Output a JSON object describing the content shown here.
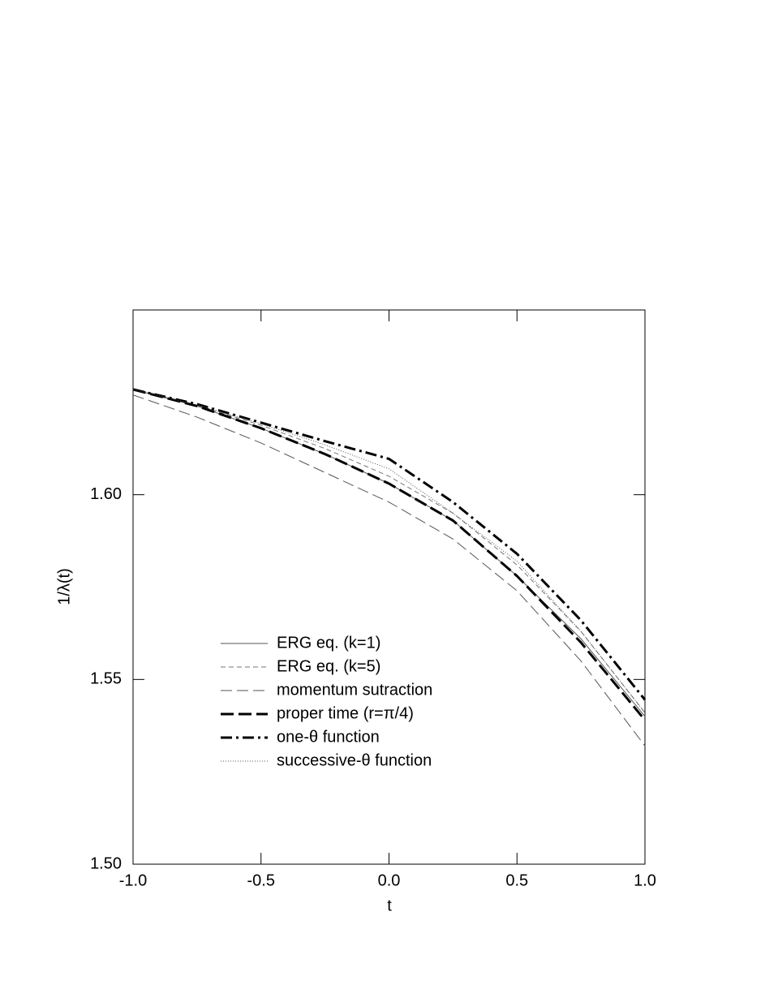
{
  "chart_data": {
    "type": "line",
    "xlabel": "t",
    "ylabel": "1/λ(t)",
    "x": [
      -1.0,
      -0.75,
      -0.5,
      -0.25,
      0.0,
      0.25,
      0.5,
      0.75,
      1.0
    ],
    "series": [
      {
        "name": "ERG eq. (k=1)",
        "color": "#555555",
        "width": 1,
        "dash": "",
        "values": [
          1.6285,
          1.624,
          1.618,
          1.611,
          1.603,
          1.593,
          1.578,
          1.561,
          1.54
        ]
      },
      {
        "name": "ERG eq. (k=5)",
        "color": "#777777",
        "width": 1,
        "dash": "6 4",
        "values": [
          1.6285,
          1.6242,
          1.6188,
          1.6125,
          1.605,
          1.595,
          1.581,
          1.563,
          1.541
        ]
      },
      {
        "name": "momentum sutraction",
        "color": "#555555",
        "width": 1,
        "dash": "14 6",
        "values": [
          1.627,
          1.621,
          1.614,
          1.606,
          1.598,
          1.588,
          1.574,
          1.555,
          1.532
        ]
      },
      {
        "name": "proper time (r=π/4)",
        "color": "#000000",
        "width": 3,
        "dash": "16 6",
        "values": [
          1.6285,
          1.624,
          1.618,
          1.611,
          1.603,
          1.593,
          1.578,
          1.56,
          1.539
        ]
      },
      {
        "name": "one-θ function",
        "color": "#000000",
        "width": 3,
        "dash": "14 5 3 5",
        "values": [
          1.6285,
          1.6245,
          1.6195,
          1.6145,
          1.6097,
          1.598,
          1.584,
          1.566,
          1.5445
        ]
      },
      {
        "name": "successive-θ function",
        "color": "#555555",
        "width": 1,
        "dash": "1 2",
        "values": [
          1.6285,
          1.6243,
          1.6192,
          1.6135,
          1.607,
          1.595,
          1.582,
          1.563,
          1.541
        ]
      }
    ],
    "xlim": [
      -1.0,
      1.0
    ],
    "xticks": [
      {
        "value": -1.0,
        "label": "-1.0"
      },
      {
        "value": -0.5,
        "label": "-0.5"
      },
      {
        "value": 0.0,
        "label": "0.0"
      },
      {
        "value": 0.5,
        "label": "0.5"
      },
      {
        "value": 1.0,
        "label": "1.0"
      }
    ],
    "ylim": [
      1.5,
      1.65
    ],
    "yticks": [
      {
        "value": 1.5,
        "label": "1.50"
      },
      {
        "value": 1.55,
        "label": "1.55"
      },
      {
        "value": 1.6,
        "label": "1.60"
      }
    ],
    "grid": false
  }
}
